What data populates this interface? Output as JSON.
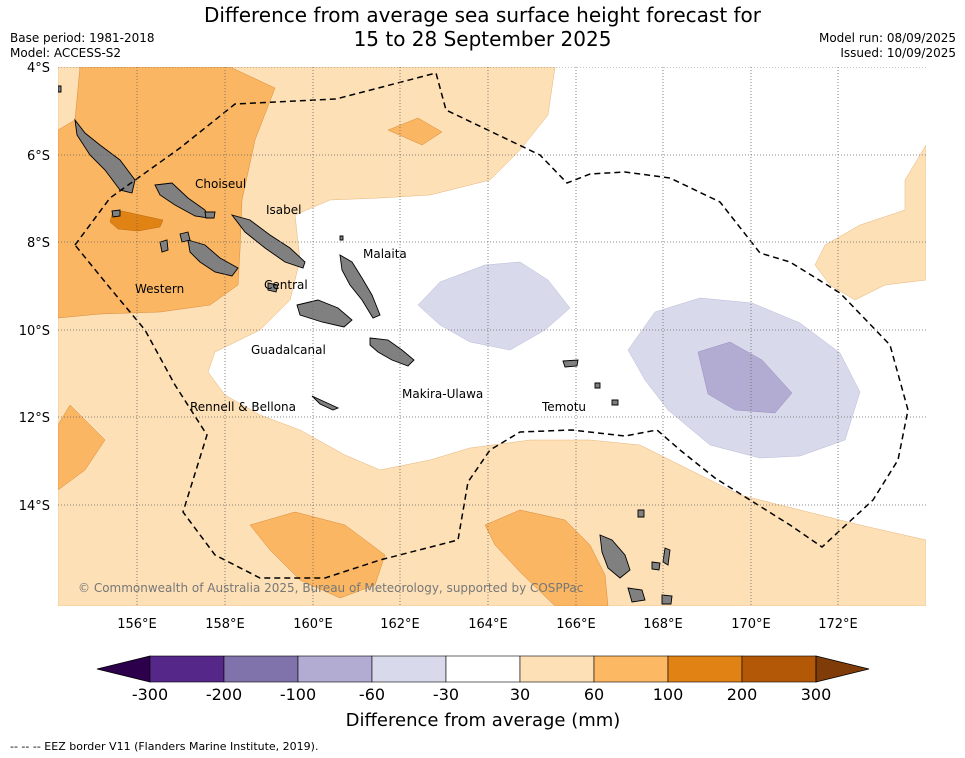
{
  "title": {
    "line1": "Difference from average sea surface height forecast for",
    "line2": "15 to 28 September 2025"
  },
  "meta": {
    "base_period": "Base period: 1981-2018",
    "model": "Model: ACCESS-S2",
    "model_run": "Model run: 08/09/2025",
    "issued": "Issued: 10/09/2025"
  },
  "map": {
    "lat_labels": [
      "4°S",
      "6°S",
      "8°S",
      "10°S",
      "12°S",
      "14°S"
    ],
    "lon_labels": [
      "156°E",
      "158°E",
      "160°E",
      "162°E",
      "164°E",
      "166°E",
      "168°E",
      "170°E",
      "172°E"
    ],
    "provinces": [
      "Choiseul",
      "Isabel",
      "Malaita",
      "Western",
      "Central",
      "Guadalcanal",
      "Makira-Ulawa",
      "Rennell & Bellona",
      "Temotu"
    ],
    "copyright": "© Commonwealth of Australia 2025, Bureau of Meteorology, supported by COSPPac",
    "colors": {
      "land": "#808080",
      "pos_30_60": "#fde0b6",
      "pos_60_100": "#fab663",
      "pos_100_200": "#e08214",
      "neg_60_30": "#d8daeb",
      "neg_100_60": "#b2abd2",
      "eez_border": "#000000"
    }
  },
  "colorbar": {
    "title": "Difference from average (mm)",
    "ticks": [
      "-300",
      "-200",
      "-100",
      "-60",
      "-30",
      "30",
      "60",
      "100",
      "200",
      "300"
    ],
    "colors": [
      "#2d004b",
      "#542788",
      "#8073ac",
      "#b2abd2",
      "#d8daeb",
      "#ffffff",
      "#fee0b6",
      "#fdb863",
      "#e08214",
      "#b35806",
      "#7f3b08"
    ]
  },
  "footnote": "-- -- -- EEZ border V11 (Flanders Marine Institute, 2019)."
}
